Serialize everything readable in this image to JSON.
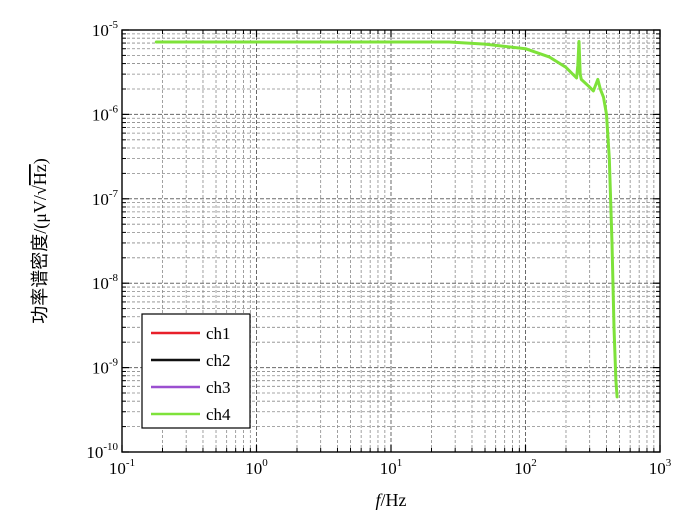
{
  "chart_data": {
    "type": "line",
    "xlabel_italic": "f",
    "xlabel_rest": "/Hz",
    "ylabel_prefix": "功率谱密度/(μV/",
    "ylabel_sqrt": "√",
    "ylabel_radicand": "Hz",
    "ylabel_suffix": ")",
    "x_scale": "log",
    "y_scale": "log",
    "xlim": [
      0.1,
      1000
    ],
    "ylim": [
      1e-10,
      1e-05
    ],
    "grid": true,
    "legend_position": "lower-left",
    "x_ticks": [
      {
        "base": "10",
        "exp": "-1"
      },
      {
        "base": "10",
        "exp": "0"
      },
      {
        "base": "10",
        "exp": "1"
      },
      {
        "base": "10",
        "exp": "2"
      },
      {
        "base": "10",
        "exp": "3"
      }
    ],
    "y_ticks": [
      {
        "base": "10",
        "exp": "-10"
      },
      {
        "base": "10",
        "exp": "-9"
      },
      {
        "base": "10",
        "exp": "-8"
      },
      {
        "base": "10",
        "exp": "-7"
      },
      {
        "base": "10",
        "exp": "-6"
      },
      {
        "base": "10",
        "exp": "-5"
      }
    ],
    "series": [
      {
        "name": "ch1",
        "color": "#e8202a",
        "x": [],
        "y": []
      },
      {
        "name": "ch2",
        "color": "#111111",
        "x": [],
        "y": []
      },
      {
        "name": "ch3",
        "color": "#9b4fd0",
        "x": [],
        "y": []
      },
      {
        "name": "ch4",
        "color": "#7ee23a",
        "x": [
          0.18,
          1,
          10,
          27,
          50,
          100,
          150,
          200,
          240,
          245,
          250,
          255,
          260,
          300,
          320,
          345,
          360,
          380,
          400,
          420,
          440,
          455,
          470,
          480
        ],
        "y": [
          7.2e-06,
          7.2e-06,
          7.2e-06,
          7.2e-06,
          6.8e-06,
          6e-06,
          4.8e-06,
          3.6e-06,
          2.7e-06,
          3.8e-06,
          7.3e-06,
          3e-06,
          2.6e-06,
          2.1e-06,
          1.9e-06,
          2.6e-06,
          2e-06,
          1.6e-06,
          1e-06,
          3e-07,
          3e-08,
          3e-09,
          7e-10,
          4.5e-10
        ]
      }
    ]
  }
}
